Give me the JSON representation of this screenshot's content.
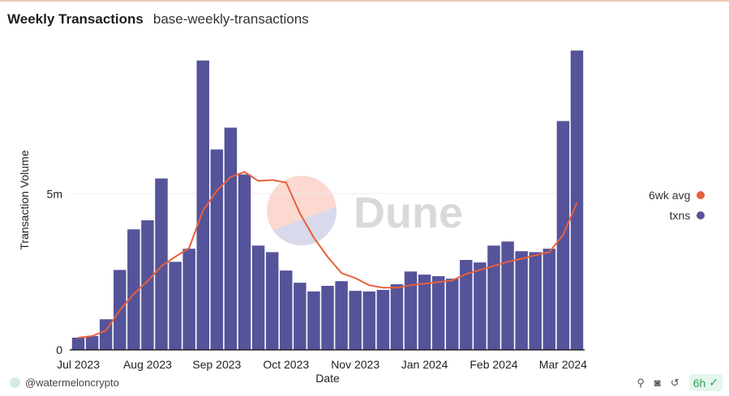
{
  "header": {
    "title": "Weekly Transactions",
    "subtitle": "base-weekly-transactions"
  },
  "chart_data": {
    "type": "bar",
    "title": "Weekly Transactions",
    "xlabel": "Date",
    "ylabel": "Transaction Volume",
    "ylim": [
      0,
      9.6
    ],
    "y_ticks": [
      {
        "value": 0,
        "label": "0"
      },
      {
        "value": 5,
        "label": "5m"
      }
    ],
    "x_ticks": [
      {
        "index": 0,
        "label": "Jul 2023"
      },
      {
        "index": 5,
        "label": "Aug 2023"
      },
      {
        "index": 10,
        "label": "Sep 2023"
      },
      {
        "index": 15,
        "label": "Oct 2023"
      },
      {
        "index": 20,
        "label": "Nov 2023"
      },
      {
        "index": 25,
        "label": "Jan 2024"
      },
      {
        "index": 30,
        "label": "Feb 2024"
      },
      {
        "index": 35,
        "label": "Mar 2024"
      }
    ],
    "series": [
      {
        "name": "txns",
        "type": "bar",
        "color": "#55539a",
        "unit": "millions",
        "values": [
          0.39,
          0.44,
          0.98,
          2.56,
          3.86,
          4.15,
          5.49,
          2.82,
          3.24,
          9.27,
          6.42,
          7.12,
          5.62,
          3.34,
          3.13,
          2.54,
          2.15,
          1.87,
          2.05,
          2.2,
          1.89,
          1.87,
          1.92,
          2.1,
          2.51,
          2.41,
          2.36,
          2.28,
          2.88,
          2.8,
          3.34,
          3.47,
          3.16,
          3.13,
          3.24,
          7.33,
          9.59
        ]
      },
      {
        "name": "6wk avg",
        "type": "line",
        "color": "#e8603c",
        "unit": "millions",
        "values": [
          0.39,
          0.44,
          0.62,
          1.27,
          1.79,
          2.2,
          2.68,
          2.98,
          3.26,
          4.46,
          5.1,
          5.54,
          5.7,
          5.41,
          5.44,
          5.36,
          4.38,
          3.6,
          2.98,
          2.46,
          2.3,
          2.07,
          1.99,
          1.99,
          2.07,
          2.12,
          2.17,
          2.23,
          2.43,
          2.56,
          2.69,
          2.82,
          2.92,
          3.03,
          3.13,
          3.68,
          4.72
        ]
      }
    ],
    "legend": "right",
    "watermark": "Dune"
  },
  "footer": {
    "user": "@watermeloncrypto",
    "refresh": "6h"
  }
}
